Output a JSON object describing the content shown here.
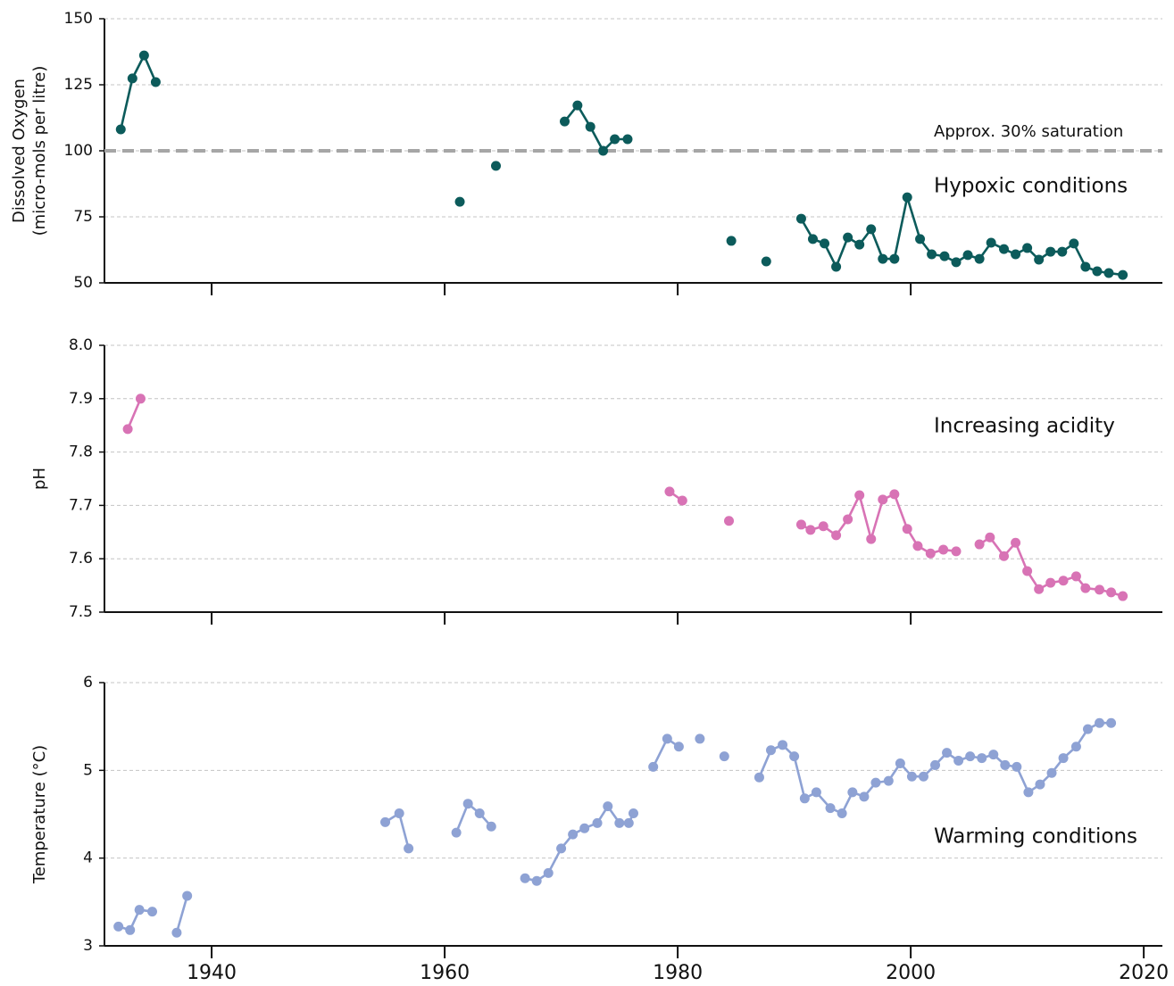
{
  "chart_data": [
    {
      "type": "line",
      "color": "#0c5b5b",
      "ylabel": [
        "Dissolved Oxygen",
        "(micro-mols per litre)"
      ],
      "x": [
        1932.2,
        1933.2,
        1934.2,
        1935.2,
        1948,
        1961.3,
        1963,
        1964.4,
        1967,
        1970.3,
        1971.4,
        1972.5,
        1973.6,
        1974.6,
        1975.7,
        1980,
        1984.6,
        1986,
        1987.6,
        1989,
        1990.6,
        1991.6,
        1992.6,
        1993.6,
        1994.6,
        1995.6,
        1996.6,
        1997.6,
        1998.6,
        1999.7,
        2000.8,
        2001.8,
        2002.9,
        2003.9,
        2004.9,
        2005.9,
        2006.9,
        2008.0,
        2009.0,
        2010.0,
        2011.0,
        2012.0,
        2013.0,
        2014.0,
        2015.0,
        2016.0,
        2017.0,
        2018.2
      ],
      "values": [
        108.1,
        127.4,
        136.1,
        126.0,
        null,
        80.7,
        null,
        94.3,
        null,
        111.1,
        117.2,
        109.1,
        100.0,
        104.4,
        104.4,
        null,
        65.9,
        null,
        58.1,
        null,
        74.3,
        66.6,
        64.9,
        56.1,
        67.2,
        64.5,
        70.3,
        59.1,
        59.1,
        82.4,
        66.6,
        60.8,
        60.1,
        57.8,
        60.5,
        59.1,
        65.2,
        62.8,
        60.8,
        63.2,
        58.8,
        61.8,
        61.8,
        64.9,
        56.1,
        54.4,
        53.7,
        53.0
      ],
      "xlim": [
        1930.8,
        2021.6
      ],
      "xticks": [
        1940,
        1960,
        1980,
        2000
      ],
      "xtick_labels": false,
      "ylim": [
        50,
        150
      ],
      "yticks": [
        50,
        75,
        100,
        125,
        150
      ],
      "grid": true,
      "reference_line": {
        "value": 100,
        "label": "Approx. 30% saturation"
      },
      "annotations": [
        "Hypoxic conditions"
      ]
    },
    {
      "type": "line",
      "color": "#d873b5",
      "ylabel": [
        "pH"
      ],
      "x": [
        1932.8,
        1933.9,
        1956,
        1979.3,
        1980.4,
        1982,
        1984.4,
        1987,
        1990.6,
        1991.4,
        1992.5,
        1993.6,
        1994.6,
        1995.6,
        1996.6,
        1997.6,
        1998.6,
        1999.7,
        2000.6,
        2001.7,
        2002.8,
        2003.9,
        2005,
        2005.9,
        2006.8,
        2008.0,
        2009.0,
        2010.0,
        2011.0,
        2012.0,
        2013.1,
        2014.2,
        2015.0,
        2016.2,
        2017.2,
        2018.2
      ],
      "values": [
        7.843,
        7.9,
        null,
        7.726,
        7.709,
        null,
        7.671,
        null,
        7.664,
        7.654,
        7.661,
        7.644,
        7.674,
        7.719,
        7.637,
        7.711,
        7.721,
        7.656,
        7.624,
        7.61,
        7.617,
        7.614,
        null,
        7.627,
        7.64,
        7.605,
        7.63,
        7.577,
        7.543,
        7.555,
        7.559,
        7.567,
        7.545,
        7.542,
        7.537,
        7.53
      ],
      "xlim": [
        1930.8,
        2021.6
      ],
      "xticks": [
        1940,
        1960,
        1980,
        2000
      ],
      "xtick_labels": false,
      "ylim": [
        7.5,
        8.0
      ],
      "yticks": [
        {
          "value": 7.5,
          "label": "7.5"
        },
        {
          "value": 7.6,
          "label": "7.6"
        },
        {
          "value": 7.7,
          "label": "7.7"
        },
        {
          "value": 7.8,
          "label": "7.8"
        },
        {
          "value": 7.9,
          "label": "7.9"
        },
        {
          "value": 8,
          "label": "8.0"
        }
      ],
      "grid": true,
      "annotations": [
        "Increasing acidity"
      ]
    },
    {
      "type": "line",
      "color": "#8ea2d4",
      "ylabel": [
        "Temperature (°C)"
      ],
      "x": [
        1932.0,
        1933.0,
        1933.8,
        1934.9,
        1936,
        1937.0,
        1937.9,
        1946,
        1954.9,
        1956.1,
        1956.9,
        1959,
        1961.0,
        1962.0,
        1963.0,
        1964.0,
        1965.5,
        1966.9,
        1967.9,
        1968.9,
        1970.0,
        1971.0,
        1972.0,
        1973.1,
        1974.0,
        1975.0,
        1975.8,
        1976.2,
        1977,
        1977.9,
        1979.1,
        1980.1,
        1981,
        1981.9,
        1983,
        1984.0,
        1985.5,
        1987.0,
        1988.0,
        1989.0,
        1990.0,
        1990.9,
        1991.9,
        1993.1,
        1994.1,
        1995.0,
        1996.0,
        1997.0,
        1998.1,
        1999.1,
        2000.1,
        2001.1,
        2002.1,
        2003.1,
        2004.1,
        2005.1,
        2006.1,
        2007.1,
        2008.1,
        2009.1,
        2010.1,
        2011.1,
        2012.1,
        2013.1,
        2014.2,
        2015.2,
        2016.2,
        2017.2
      ],
      "values": [
        3.22,
        3.18,
        3.41,
        3.39,
        null,
        3.15,
        3.57,
        null,
        4.41,
        4.51,
        4.11,
        null,
        4.29,
        4.62,
        4.51,
        4.36,
        null,
        3.77,
        3.74,
        3.83,
        4.11,
        4.27,
        4.34,
        4.4,
        4.59,
        4.4,
        4.4,
        4.51,
        null,
        5.04,
        5.36,
        5.27,
        null,
        5.36,
        null,
        5.16,
        null,
        4.92,
        5.23,
        5.29,
        5.16,
        4.68,
        4.75,
        4.57,
        4.51,
        4.75,
        4.7,
        4.86,
        4.88,
        5.08,
        4.93,
        4.93,
        5.06,
        5.2,
        5.11,
        5.16,
        5.14,
        5.18,
        5.06,
        5.04,
        4.75,
        4.84,
        4.97,
        5.14,
        5.27,
        5.47,
        5.54,
        5.54
      ],
      "xlim": [
        1930.8,
        2021.6
      ],
      "xticks": [
        1940,
        1960,
        1980,
        2000,
        2020
      ],
      "xtick_labels": true,
      "ylim": [
        3,
        6
      ],
      "yticks": [
        3,
        4,
        5,
        6
      ],
      "grid": true,
      "annotations": [
        "Warming conditions"
      ]
    }
  ]
}
